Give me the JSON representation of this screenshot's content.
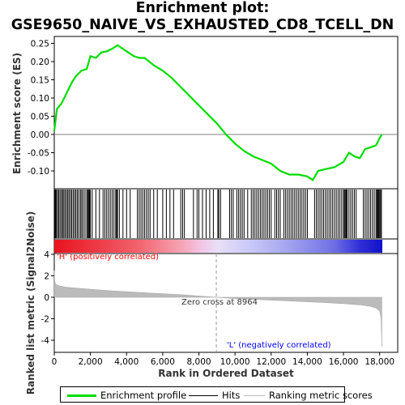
{
  "title_line1": "Enrichment plot:",
  "title_line2": "GSE9650_NAIVE_VS_EXHAUSTED_CD8_TCELL_DN",
  "colors": {
    "enrichment": "#00dd00",
    "hits": "#000000",
    "metric_fill": "#bbbbbb",
    "zero_line": "#808080",
    "pos_label": "#ff0000",
    "neg_label": "#0000ff"
  },
  "chart_data": [
    {
      "type": "line",
      "name": "enrichment-profile",
      "ylabel": "Enrichment score (ES)",
      "ylim": [
        -0.14,
        0.26
      ],
      "yticks": [
        0.25,
        0.2,
        0.15,
        0.1,
        0.05,
        0.0,
        -0.05,
        -0.1
      ],
      "ytick_labels": [
        "0.25",
        "0.20",
        "0.15",
        "0.10",
        "0.05",
        "0.00",
        "-0.05",
        "-0.10"
      ],
      "x": [
        0,
        150,
        400,
        700,
        1000,
        1200,
        1500,
        1800,
        2000,
        2300,
        2600,
        2900,
        3200,
        3500,
        3800,
        4100,
        4400,
        4700,
        5000,
        5500,
        6000,
        6500,
        7000,
        7500,
        8000,
        8500,
        9000,
        9500,
        10000,
        10500,
        11000,
        11500,
        12000,
        12500,
        13000,
        13500,
        14000,
        14300,
        14600,
        15000,
        15500,
        16000,
        16300,
        16600,
        16900,
        17200,
        17500,
        17800,
        18000,
        18120
      ],
      "y": [
        0.01,
        0.07,
        0.085,
        0.115,
        0.145,
        0.16,
        0.175,
        0.18,
        0.215,
        0.21,
        0.225,
        0.228,
        0.235,
        0.245,
        0.235,
        0.225,
        0.215,
        0.21,
        0.21,
        0.19,
        0.175,
        0.155,
        0.13,
        0.105,
        0.08,
        0.055,
        0.03,
        0.0,
        -0.025,
        -0.045,
        -0.06,
        -0.07,
        -0.08,
        -0.1,
        -0.11,
        -0.11,
        -0.115,
        -0.125,
        -0.1,
        -0.095,
        -0.09,
        -0.075,
        -0.05,
        -0.06,
        -0.065,
        -0.04,
        -0.035,
        -0.03,
        -0.01,
        0.0
      ]
    },
    {
      "type": "hits",
      "name": "hits",
      "positions": [
        30,
        70,
        120,
        180,
        250,
        320,
        400,
        460,
        530,
        600,
        680,
        750,
        820,
        900,
        970,
        1050,
        1130,
        1200,
        1280,
        1360,
        1450,
        1520,
        1600,
        1700,
        1800,
        1850,
        1900,
        1950,
        2000,
        2100,
        2300,
        2500,
        2700,
        2800,
        2900,
        3000,
        3100,
        3200,
        3300,
        3400,
        3450,
        3500,
        3600,
        3800,
        4000,
        4200,
        4600,
        4700,
        4800,
        4900,
        5000,
        5100,
        5200,
        5300,
        5500,
        5700,
        6000,
        6200,
        6400,
        6600,
        7000,
        7100,
        7200,
        7700,
        7900,
        8000,
        8200,
        8400,
        8600,
        8800,
        9050,
        9100,
        9200,
        9700,
        9800,
        9900,
        10100,
        10200,
        10300,
        10400,
        10500,
        10700,
        10900,
        11000,
        11100,
        11200,
        11300,
        11400,
        11500,
        11600,
        11700,
        11800,
        11900,
        12000,
        12200,
        12300,
        12400,
        12500,
        12700,
        12800,
        12900,
        13000,
        13100,
        13200,
        13300,
        13400,
        13500,
        13600,
        13700,
        13800,
        13900,
        14000,
        14400,
        14500,
        14600,
        14700,
        14800,
        14900,
        15000,
        15100,
        15200,
        15300,
        15400,
        15500,
        15600,
        15700,
        15800,
        15900,
        16000,
        16050,
        16100,
        16150,
        16200,
        16300,
        16400,
        16500,
        16600,
        16700,
        17100,
        17200,
        17300,
        17400,
        17500,
        17600,
        17700,
        17800,
        17850,
        17900,
        17950,
        18000,
        18050,
        18100
      ]
    },
    {
      "type": "area",
      "name": "ranked-list-metric",
      "ylabel": "Ranked list metric (Signal2Noise)",
      "xlabel": "Rank in Ordered Dataset",
      "xlim": [
        0,
        19000
      ],
      "xticks": [
        0,
        2000,
        4000,
        6000,
        8000,
        10000,
        12000,
        14000,
        16000,
        18000
      ],
      "xtick_labels": [
        "0",
        "2,000",
        "4,000",
        "6,000",
        "8,000",
        "10,000",
        "12,000",
        "14,000",
        "16,000",
        "18,000"
      ],
      "ylim": [
        -5,
        4
      ],
      "yticks": [
        4,
        2,
        0,
        -2,
        -4
      ],
      "ytick_labels": [
        "4",
        "2",
        "0",
        "-2",
        "-4"
      ],
      "x": [
        0,
        20,
        60,
        150,
        300,
        600,
        1000,
        2000,
        3000,
        4000,
        5000,
        6000,
        7000,
        8000,
        8964,
        10000,
        11000,
        12000,
        13000,
        14000,
        15000,
        16000,
        17000,
        17500,
        17800,
        18000,
        18080,
        18120
      ],
      "y": [
        2.5,
        1.6,
        1.3,
        1.15,
        1.05,
        0.95,
        0.88,
        0.75,
        0.62,
        0.52,
        0.42,
        0.33,
        0.24,
        0.12,
        0.0,
        -0.12,
        -0.2,
        -0.27,
        -0.34,
        -0.42,
        -0.5,
        -0.6,
        -0.72,
        -0.85,
        -1.0,
        -1.3,
        -2.0,
        -4.6
      ]
    }
  ],
  "annotations": {
    "pos_label": "'H' (positively correlated)",
    "neg_label": "'L' (negatively correlated)",
    "zero_cross": "Zero cross at 8964",
    "zero_cross_rank": 8964
  },
  "legend": {
    "enrichment": "Enrichment profile",
    "hits": "Hits",
    "ranking": "Ranking metric scores"
  }
}
